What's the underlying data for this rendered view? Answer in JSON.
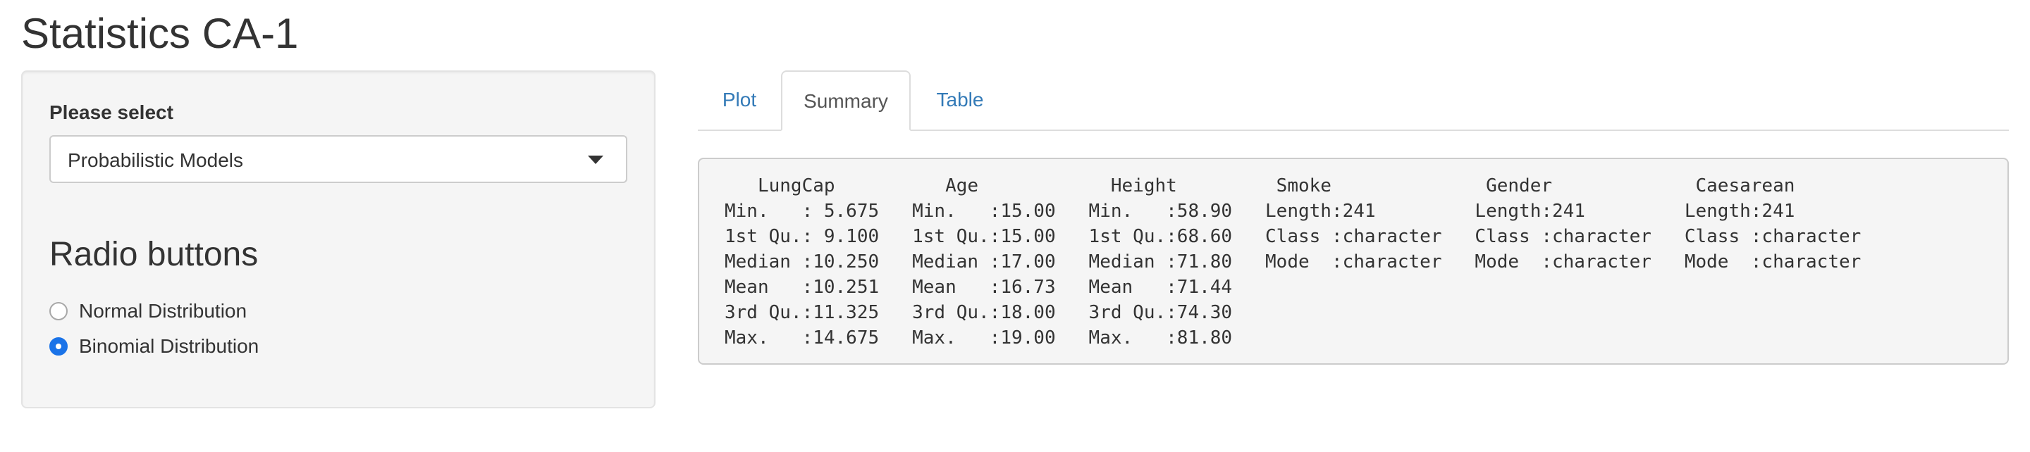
{
  "page": {
    "title": "Statistics CA-1"
  },
  "sidebar": {
    "select_label": "Please select",
    "selected_option": "Probabilistic Models",
    "radio_heading": "Radio buttons",
    "radio_options": [
      {
        "label": "Normal Distribution",
        "checked": false
      },
      {
        "label": "Binomial Distribution",
        "checked": true
      }
    ]
  },
  "tabs": {
    "plot": "Plot",
    "summary": "Summary",
    "table": "Table",
    "active": "Summary"
  },
  "summary": {
    "lines": [
      "   LungCap          Age            Height         Smoke              Gender             Caesarean        ",
      "Min.   : 5.675   Min.   :15.00   Min.   :58.90   Length:241         Length:241         Length:241        ",
      "1st Qu.: 9.100   1st Qu.:15.00   1st Qu.:68.60   Class :character   Class :character   Class :character  ",
      "Median :10.250   Median :17.00   Median :71.80   Mode  :character   Mode  :character   Mode  :character  ",
      "Mean   :10.251   Mean   :16.73   Mean   :71.44                                                           ",
      "3rd Qu.:11.325   3rd Qu.:18.00   3rd Qu.:74.30                                                           ",
      "Max.   :14.675   Max.   :19.00   Max.   :81.80                                                           "
    ]
  },
  "colors": {
    "link": "#337ab7",
    "radio_checked": "#1a73e8",
    "well_background": "#f5f5f5"
  }
}
